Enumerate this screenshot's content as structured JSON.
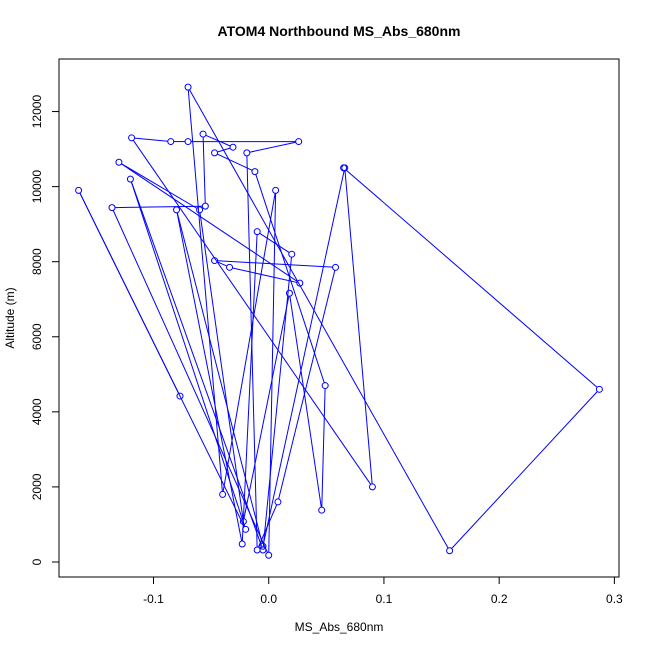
{
  "chart_data": {
    "type": "line",
    "title": "ATOM4 Northbound MS_Abs_680nm",
    "xlabel": "MS_Abs_680nm",
    "ylabel": "Altitude (m)",
    "xlim": [
      -0.182,
      0.304
    ],
    "ylim": [
      -400,
      13400
    ],
    "x_ticks": [
      -0.1,
      0.0,
      0.1,
      0.2,
      0.3
    ],
    "x_tick_labels": [
      "-0.1",
      "0.0",
      "0.1",
      "0.2",
      "0.3"
    ],
    "y_ticks": [
      0,
      2000,
      4000,
      6000,
      8000,
      10000,
      12000
    ],
    "y_tick_labels": [
      "0",
      "2000",
      "4000",
      "6000",
      "8000",
      "10000",
      "12000"
    ],
    "grid": false,
    "color": "#0000ff",
    "series": [
      {
        "markers": "open-circle",
        "points": [
          [
            -0.077,
            4420
          ],
          [
            -0.165,
            9900
          ],
          [
            -0.02,
            870
          ],
          [
            -0.12,
            10200
          ],
          [
            -0.005,
            320
          ],
          [
            0.02,
            8200
          ],
          [
            -0.01,
            8800
          ],
          [
            -0.023,
            480
          ],
          [
            -0.08,
            9380
          ],
          [
            -0.005,
            420
          ],
          [
            0.066,
            10500
          ],
          [
            0.09,
            2000
          ],
          [
            -0.119,
            11300
          ],
          [
            -0.085,
            11200
          ],
          [
            -0.07,
            11200
          ],
          [
            0.026,
            11200
          ],
          [
            -0.019,
            10900
          ],
          [
            -0.01,
            320
          ],
          [
            0.008,
            1600
          ],
          [
            0.058,
            7850
          ],
          [
            -0.047,
            8030
          ],
          [
            -0.034,
            7850
          ],
          [
            0.027,
            7430
          ],
          [
            -0.13,
            10650
          ],
          [
            -0.06,
            9380
          ],
          [
            -0.022,
            1080
          ],
          [
            0.018,
            7160
          ],
          [
            0.046,
            1380
          ],
          [
            0.049,
            4700
          ],
          [
            -0.012,
            10400
          ],
          [
            -0.047,
            10900
          ],
          [
            -0.031,
            11050
          ],
          [
            -0.057,
            11400
          ],
          [
            -0.055,
            9480
          ],
          [
            -0.136,
            9440
          ],
          [
            0.0,
            180
          ],
          [
            0.006,
            9900
          ],
          [
            -0.04,
            1800
          ],
          [
            -0.07,
            12650
          ],
          [
            0.157,
            300
          ],
          [
            0.287,
            4600
          ],
          [
            0.065,
            10500
          ]
        ]
      }
    ]
  }
}
